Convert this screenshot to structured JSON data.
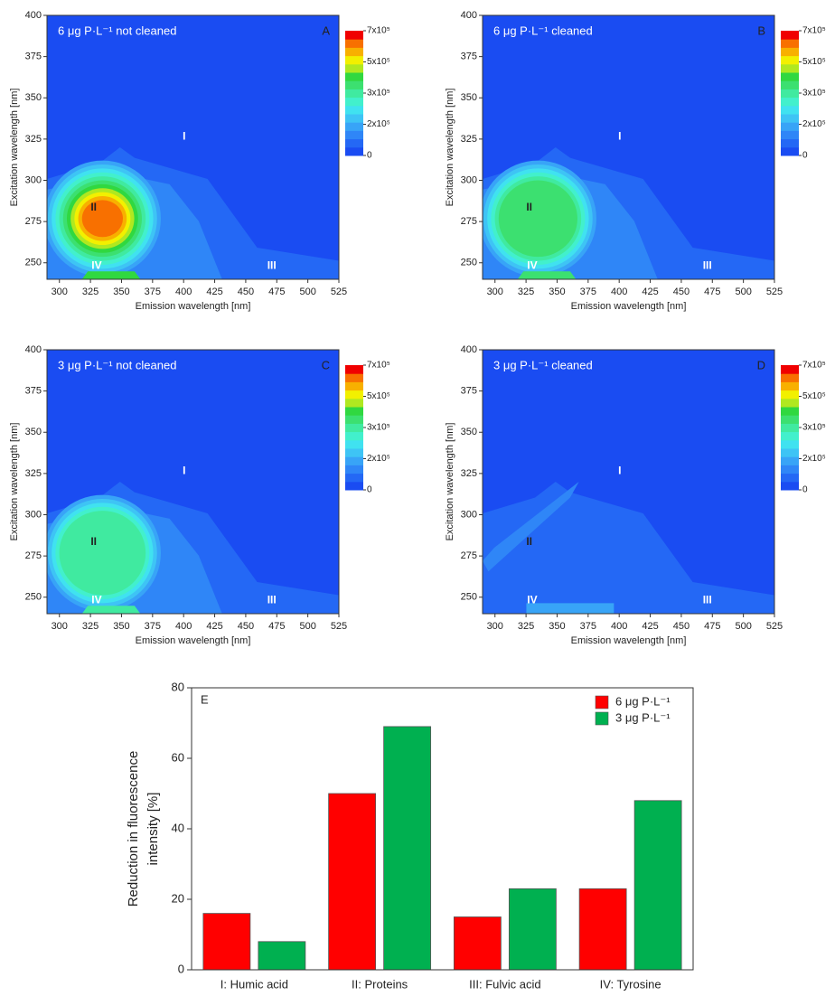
{
  "chart_data": [
    {
      "type": "contour",
      "title": "6 μg P·L⁻¹ not cleaned",
      "panel": "A",
      "peak_level": 13,
      "regions": [
        "I",
        "II",
        "III",
        "IV"
      ],
      "xlabel": "Emission wavelength [nm]",
      "ylabel": "Excitation wavelength [nm]",
      "xlim": [
        290,
        525
      ],
      "ylim": [
        240,
        400
      ],
      "xticks": [
        300,
        325,
        350,
        375,
        400,
        425,
        450,
        475,
        500,
        525
      ],
      "yticks": [
        250,
        275,
        300,
        325,
        350,
        375,
        400
      ],
      "cbar_ticks": [
        0,
        {
          "value": 200000,
          "label": "2x10⁵"
        },
        {
          "value": 300000,
          "label": "3x10⁵"
        },
        {
          "value": 500000,
          "label": "5x10⁵"
        },
        {
          "value": 700000,
          "label": "7x10⁵"
        }
      ],
      "level_colors": [
        "#1a4cf2",
        "#2468f5",
        "#2f86f7",
        "#38a4f7",
        "#3ec4f5",
        "#40e2f0",
        "#42f0cc",
        "#40eaa0",
        "#3ce070",
        "#30d840",
        "#b0e820",
        "#f2f000",
        "#f8b000",
        "#f87000",
        "#f00000"
      ]
    },
    {
      "type": "contour",
      "title": "6 μg P·L⁻¹ cleaned",
      "panel": "B",
      "peak_level": 8,
      "regions": [
        "I",
        "II",
        "III",
        "IV"
      ],
      "xlabel": "Emission wavelength [nm]",
      "ylabel": "Excitation wavelength [nm]",
      "xlim": [
        290,
        525
      ],
      "ylim": [
        240,
        400
      ],
      "xticks": [
        300,
        325,
        350,
        375,
        400,
        425,
        450,
        475,
        500,
        525
      ],
      "yticks": [
        250,
        275,
        300,
        325,
        350,
        375,
        400
      ],
      "cbar_ticks": [
        0,
        {
          "value": 200000,
          "label": "2x10⁵"
        },
        {
          "value": 300000,
          "label": "3x10⁵"
        },
        {
          "value": 500000,
          "label": "5x10⁵"
        },
        {
          "value": 700000,
          "label": "7x10⁵"
        }
      ],
      "level_colors": [
        "#1a4cf2",
        "#2468f5",
        "#2f86f7",
        "#38a4f7",
        "#3ec4f5",
        "#40e2f0",
        "#42f0cc",
        "#40eaa0",
        "#3ce070",
        "#30d840",
        "#b0e820",
        "#f2f000",
        "#f8b000",
        "#f87000",
        "#f00000"
      ]
    },
    {
      "type": "contour",
      "title": "3 μg P·L⁻¹ not cleaned",
      "panel": "C",
      "peak_level": 7,
      "regions": [
        "I",
        "II",
        "III",
        "IV"
      ],
      "xlabel": "Emission wavelength [nm]",
      "ylabel": "Excitation wavelength [nm]",
      "xlim": [
        290,
        525
      ],
      "ylim": [
        240,
        400
      ],
      "xticks": [
        300,
        325,
        350,
        375,
        400,
        425,
        450,
        475,
        500,
        525
      ],
      "yticks": [
        250,
        275,
        300,
        325,
        350,
        375,
        400
      ],
      "cbar_ticks": [
        0,
        {
          "value": 200000,
          "label": "2x10⁵"
        },
        {
          "value": 300000,
          "label": "3x10⁵"
        },
        {
          "value": 500000,
          "label": "5x10⁵"
        },
        {
          "value": 700000,
          "label": "7x10⁵"
        }
      ],
      "level_colors": [
        "#1a4cf2",
        "#2468f5",
        "#2f86f7",
        "#38a4f7",
        "#3ec4f5",
        "#40e2f0",
        "#42f0cc",
        "#40eaa0",
        "#3ce070",
        "#30d840",
        "#b0e820",
        "#f2f000",
        "#f8b000",
        "#f87000",
        "#f00000"
      ]
    },
    {
      "type": "contour",
      "title": "3 μg P·L⁻¹ cleaned",
      "panel": "D",
      "peak_level": 2,
      "regions": [
        "I",
        "II",
        "III",
        "IV"
      ],
      "xlabel": "Emission wavelength [nm]",
      "ylabel": "Excitation wavelength [nm]",
      "xlim": [
        290,
        525
      ],
      "ylim": [
        240,
        400
      ],
      "xticks": [
        300,
        325,
        350,
        375,
        400,
        425,
        450,
        475,
        500,
        525
      ],
      "yticks": [
        250,
        275,
        300,
        325,
        350,
        375,
        400
      ],
      "cbar_ticks": [
        0,
        {
          "value": 200000,
          "label": "2x10⁵"
        },
        {
          "value": 300000,
          "label": "3x10⁵"
        },
        {
          "value": 500000,
          "label": "5x10⁵"
        },
        {
          "value": 700000,
          "label": "7x10⁵"
        }
      ],
      "level_colors": [
        "#1a4cf2",
        "#2468f5",
        "#2f86f7",
        "#38a4f7",
        "#3ec4f5",
        "#40e2f0",
        "#42f0cc",
        "#40eaa0",
        "#3ce070",
        "#30d840",
        "#b0e820",
        "#f2f000",
        "#f8b000",
        "#f87000",
        "#f00000"
      ]
    },
    {
      "type": "bar",
      "panel": "E",
      "categories": [
        "I: Humic acid",
        "II: Proteins",
        "III: Fulvic acid",
        "IV: Tyrosine"
      ],
      "series": [
        {
          "name": "6 μg P·L⁻¹",
          "color": "#ff0000",
          "values": [
            16,
            50,
            15,
            23
          ]
        },
        {
          "name": "3 μg P·L⁻¹",
          "color": "#00b050",
          "values": [
            8,
            69,
            23,
            48
          ]
        }
      ],
      "ylabel": [
        "Reduction in fluorescence",
        "intensity [%]"
      ],
      "ylim": [
        0,
        80
      ],
      "yticks": [
        0,
        20,
        40,
        60,
        80
      ],
      "legend": "upper right"
    }
  ]
}
